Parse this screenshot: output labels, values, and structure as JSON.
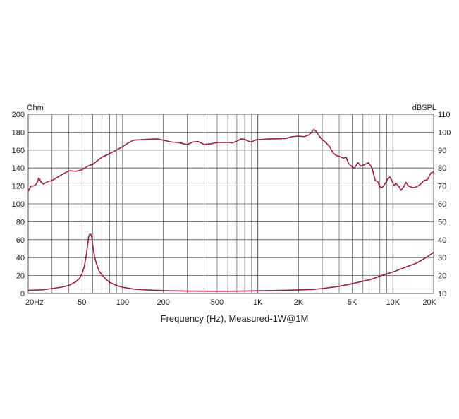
{
  "chart_data": {
    "type": "line",
    "xlabel": "Frequency (Hz), Measured-1W@1M",
    "x_scale": "log",
    "xlim": [
      20,
      20000
    ],
    "x_ticks": [
      20,
      50,
      100,
      200,
      500,
      1000,
      2000,
      5000,
      10000,
      20000
    ],
    "x_tick_labels": [
      "20Hz",
      "50",
      "100",
      "200",
      "500",
      "1K",
      "2K",
      "5K",
      "10K",
      "20K"
    ],
    "y_left_label": "Ohm",
    "y_left_lim": [
      0,
      200
    ],
    "y_left_ticks": [
      0,
      20,
      40,
      60,
      80,
      100,
      120,
      140,
      160,
      180,
      200
    ],
    "y_right_label": "dBSPL",
    "y_right_lim": [
      10,
      110
    ],
    "y_right_ticks": [
      10,
      20,
      30,
      40,
      50,
      60,
      70,
      80,
      90,
      100,
      110
    ],
    "grid": true,
    "line_color": "#9b1f3c",
    "series": [
      {
        "axis": "right",
        "points": [
          [
            20,
            67
          ],
          [
            21,
            70
          ],
          [
            22,
            70
          ],
          [
            23,
            71
          ],
          [
            24,
            74.5
          ],
          [
            25,
            72
          ],
          [
            26,
            71
          ],
          [
            28,
            72.5
          ],
          [
            30,
            73
          ],
          [
            35,
            76
          ],
          [
            40,
            78.5
          ],
          [
            45,
            78.2
          ],
          [
            50,
            79
          ],
          [
            55,
            81
          ],
          [
            60,
            82
          ],
          [
            70,
            86
          ],
          [
            80,
            88
          ],
          [
            90,
            90
          ],
          [
            100,
            92
          ],
          [
            110,
            94
          ],
          [
            120,
            95.5
          ],
          [
            150,
            96
          ],
          [
            180,
            96.2
          ],
          [
            200,
            95.5
          ],
          [
            230,
            94.5
          ],
          [
            260,
            94.2
          ],
          [
            300,
            93
          ],
          [
            330,
            94.5
          ],
          [
            360,
            94.8
          ],
          [
            400,
            93.2
          ],
          [
            450,
            93.5
          ],
          [
            500,
            94.2
          ],
          [
            600,
            94.3
          ],
          [
            650,
            94
          ],
          [
            700,
            95
          ],
          [
            750,
            96.2
          ],
          [
            800,
            96
          ],
          [
            850,
            95
          ],
          [
            900,
            94.5
          ],
          [
            950,
            95.5
          ],
          [
            1000,
            95.8
          ],
          [
            1200,
            96.2
          ],
          [
            1400,
            96.3
          ],
          [
            1600,
            96.5
          ],
          [
            1800,
            97.5
          ],
          [
            2000,
            97.8
          ],
          [
            2200,
            97.5
          ],
          [
            2400,
            98.5
          ],
          [
            2600,
            101.5
          ],
          [
            2700,
            100.5
          ],
          [
            2900,
            97
          ],
          [
            3100,
            95
          ],
          [
            3400,
            92
          ],
          [
            3600,
            88.5
          ],
          [
            3800,
            87
          ],
          [
            4000,
            86.5
          ],
          [
            4300,
            85.5
          ],
          [
            4500,
            86
          ],
          [
            4700,
            82.5
          ],
          [
            5000,
            80.5
          ],
          [
            5200,
            80
          ],
          [
            5500,
            83
          ],
          [
            5800,
            81
          ],
          [
            6200,
            82
          ],
          [
            6600,
            83
          ],
          [
            7000,
            80
          ],
          [
            7400,
            73
          ],
          [
            7700,
            72.5
          ],
          [
            8000,
            69.5
          ],
          [
            8300,
            69
          ],
          [
            8700,
            71
          ],
          [
            9200,
            74
          ],
          [
            9500,
            75
          ],
          [
            9800,
            73
          ],
          [
            10200,
            70
          ],
          [
            10500,
            71.5
          ],
          [
            11000,
            70
          ],
          [
            11500,
            67.5
          ],
          [
            12000,
            69.5
          ],
          [
            12500,
            72
          ],
          [
            13000,
            70
          ],
          [
            14000,
            69
          ],
          [
            15000,
            69.5
          ],
          [
            16000,
            71
          ],
          [
            17000,
            73
          ],
          [
            18000,
            73.5
          ],
          [
            19000,
            77
          ],
          [
            20000,
            78
          ]
        ]
      },
      {
        "axis": "left",
        "points": [
          [
            20,
            3.5
          ],
          [
            25,
            4
          ],
          [
            30,
            5.5
          ],
          [
            35,
            7
          ],
          [
            40,
            9
          ],
          [
            45,
            13
          ],
          [
            48,
            17
          ],
          [
            50,
            22
          ],
          [
            52,
            30
          ],
          [
            54,
            44
          ],
          [
            55,
            54
          ],
          [
            56,
            63
          ],
          [
            57,
            66
          ],
          [
            58,
            66
          ],
          [
            59,
            63
          ],
          [
            60,
            54
          ],
          [
            62,
            41
          ],
          [
            64,
            33
          ],
          [
            67,
            25
          ],
          [
            70,
            21
          ],
          [
            75,
            16
          ],
          [
            80,
            12.5
          ],
          [
            90,
            9
          ],
          [
            100,
            7
          ],
          [
            120,
            5
          ],
          [
            150,
            4
          ],
          [
            200,
            3.2
          ],
          [
            300,
            2.7
          ],
          [
            500,
            2.5
          ],
          [
            700,
            2.6
          ],
          [
            1000,
            3
          ],
          [
            1500,
            3.5
          ],
          [
            2000,
            4
          ],
          [
            2500,
            4.5
          ],
          [
            3000,
            5.5
          ],
          [
            4000,
            8
          ],
          [
            5000,
            11
          ],
          [
            7000,
            16
          ],
          [
            8000,
            19.5
          ],
          [
            10000,
            24
          ],
          [
            12000,
            28.5
          ],
          [
            15000,
            34
          ],
          [
            18000,
            41
          ],
          [
            20000,
            46
          ]
        ]
      }
    ]
  }
}
